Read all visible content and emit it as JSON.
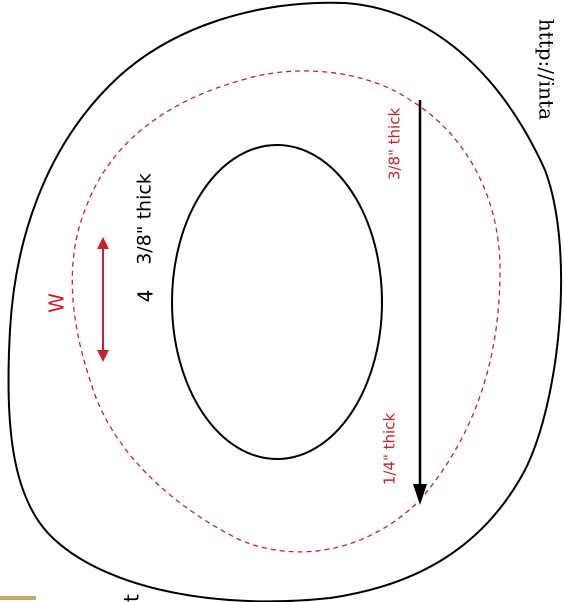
{
  "colors": {
    "outline": "#000000",
    "accent_red": "#c8202f",
    "background": "#ffffff",
    "tan_mark": "#c8a86a"
  },
  "labels": {
    "thick_left": "3/8\" thick",
    "thick_right_top": "3/8\" thick",
    "thick_right_bottom": "1/4\" thick",
    "w_letter": "W",
    "number_four": "4",
    "url_fragment": "http://inta",
    "bottom_fragment": "t"
  },
  "icons": {
    "left_arrow": "double-headed-arrow",
    "right_arrow": "down-arrow"
  }
}
